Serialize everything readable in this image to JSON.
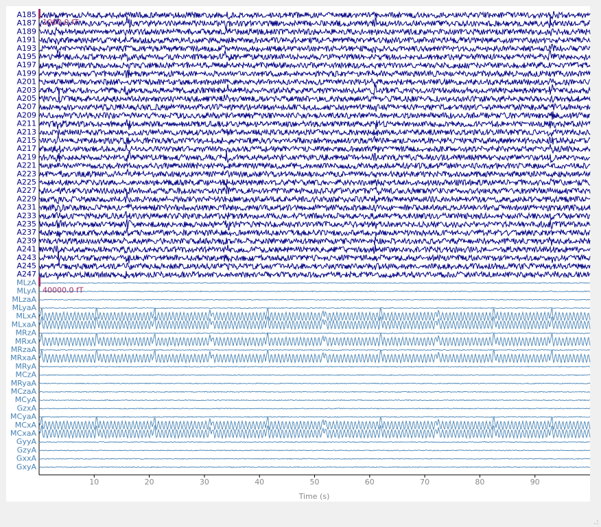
{
  "axis": {
    "label": "Time (s)",
    "xlim": [
      0,
      100
    ],
    "xticks": [
      10,
      20,
      30,
      40,
      50,
      60,
      70,
      80,
      90
    ]
  },
  "groups": [
    {
      "color": "#000080",
      "scale_label": "1000.0 fT",
      "channels": [
        "A185",
        "A187",
        "A189",
        "A191",
        "A193",
        "A195",
        "A197",
        "A199",
        "A201",
        "A203",
        "A205",
        "A207",
        "A209",
        "A211",
        "A213",
        "A215",
        "A217",
        "A219",
        "A221",
        "A223",
        "A225",
        "A227",
        "A229",
        "A231",
        "A233",
        "A235",
        "A237",
        "A239",
        "A241",
        "A243",
        "A245",
        "A247"
      ]
    },
    {
      "color": "#4682b4",
      "scale_label": "40000.0 fT",
      "channels": [
        "MLzA",
        "MLyA",
        "MLzaA",
        "MLyaA",
        "MLxA",
        "MLxaA",
        "MRzA",
        "MRxA",
        "MRzaA",
        "MRxaA",
        "MRyA",
        "MCzA",
        "MRyaA",
        "MCzaA",
        "MCyA",
        "GzxA",
        "MCyaA",
        "MCxA",
        "MCxaA",
        "GyyA",
        "GzyA",
        "GxxA",
        "GxyA"
      ]
    }
  ]
}
